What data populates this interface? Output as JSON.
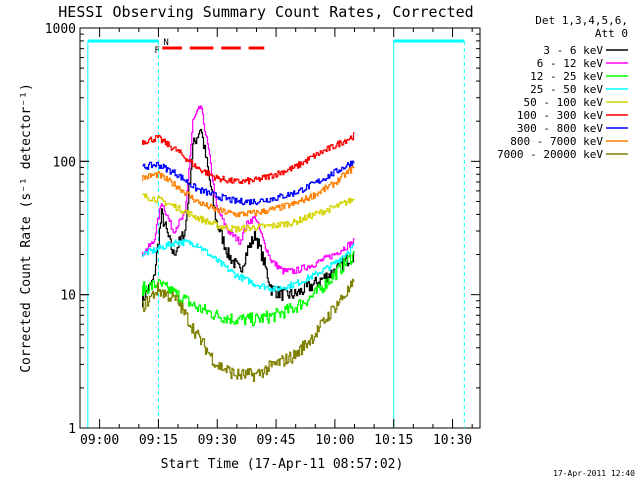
{
  "chart_data": {
    "type": "line",
    "title": "HESSI Observing Summary Count Rates, Corrected",
    "xlabel": "Start Time (17-Apr-11 08:57:02)",
    "ylabel": "Corrected Count Rate (s⁻¹ detector⁻¹)",
    "yscale": "log",
    "ylim": [
      1,
      1000
    ],
    "xlim": [
      "08:55",
      "10:37"
    ],
    "x_ticks": [
      "09:00",
      "09:15",
      "09:30",
      "09:45",
      "10:00",
      "10:15",
      "10:30"
    ],
    "y_ticks": [
      "1",
      "10",
      "100",
      "1000"
    ],
    "legend_header": [
      "Det 1,3,4,5,6,",
      "Att 0"
    ],
    "legend_position": "right",
    "timestamp": "17-Apr-2011 12:40",
    "flags": {
      "F_label": "F",
      "N_label": "N",
      "flare_segments": [
        [
          "09:16",
          "09:21"
        ],
        [
          "09:23",
          "09:29"
        ],
        [
          "09:31",
          "09:36"
        ],
        [
          "09:38",
          "09:42"
        ]
      ],
      "night_bars": [
        [
          "08:57",
          "09:15"
        ],
        [
          "10:15",
          "10:33"
        ]
      ],
      "sun_boundaries_solid": [
        "08:57",
        "10:15"
      ],
      "sun_boundaries_dashed": [
        "09:15",
        "10:33"
      ]
    },
    "data_window": [
      "09:11",
      "10:05"
    ],
    "series": [
      {
        "name": "3 - 6 keV",
        "color": "#000000",
        "x": [
          "09:11",
          "09:14",
          "09:16",
          "09:19",
          "09:22",
          "09:24",
          "09:26",
          "09:28",
          "09:30",
          "09:33",
          "09:36",
          "09:38",
          "09:40",
          "09:42",
          "09:44",
          "09:47",
          "09:50",
          "09:55",
          "10:00",
          "10:05"
        ],
        "values": [
          9,
          13,
          40,
          20,
          30,
          130,
          180,
          80,
          35,
          20,
          15,
          22,
          28,
          18,
          11,
          10,
          10,
          12,
          15,
          20
        ]
      },
      {
        "name": "6 - 12 keV",
        "color": "#ff00ff",
        "x": [
          "09:11",
          "09:14",
          "09:16",
          "09:19",
          "09:22",
          "09:24",
          "09:26",
          "09:28",
          "09:30",
          "09:33",
          "09:36",
          "09:38",
          "09:40",
          "09:42",
          "09:44",
          "09:47",
          "09:50",
          "09:55",
          "10:00",
          "10:05"
        ],
        "values": [
          20,
          25,
          50,
          30,
          40,
          200,
          260,
          120,
          45,
          30,
          25,
          35,
          38,
          25,
          18,
          15,
          15,
          17,
          20,
          25
        ]
      },
      {
        "name": "12 - 25 keV",
        "color": "#00ff00",
        "x": [
          "09:11",
          "09:15",
          "09:20",
          "09:25",
          "09:30",
          "09:35",
          "09:40",
          "09:45",
          "09:50",
          "09:55",
          "10:00",
          "10:05"
        ],
        "values": [
          11,
          12,
          10,
          8,
          7,
          6.5,
          6.5,
          7,
          8,
          10,
          14,
          20
        ]
      },
      {
        "name": "25 - 50 keV",
        "color": "#00ffff",
        "x": [
          "09:11",
          "09:15",
          "09:20",
          "09:25",
          "09:30",
          "09:35",
          "09:40",
          "09:45",
          "09:50",
          "09:55",
          "10:00",
          "10:05"
        ],
        "values": [
          20,
          22,
          25,
          24,
          18,
          14,
          12,
          11,
          12,
          14,
          17,
          23
        ]
      },
      {
        "name": "50 - 100 keV",
        "color": "#d4d400",
        "x": [
          "09:11",
          "09:15",
          "09:20",
          "09:25",
          "09:30",
          "09:35",
          "09:40",
          "09:45",
          "09:50",
          "09:55",
          "10:00",
          "10:05"
        ],
        "values": [
          55,
          52,
          45,
          38,
          33,
          31,
          32,
          33,
          35,
          40,
          45,
          52
        ]
      },
      {
        "name": "100 - 300 keV",
        "color": "#ff0000",
        "x": [
          "09:11",
          "09:15",
          "09:20",
          "09:25",
          "09:30",
          "09:35",
          "09:40",
          "09:45",
          "09:50",
          "09:55",
          "10:00",
          "10:05"
        ],
        "values": [
          140,
          150,
          120,
          90,
          75,
          70,
          72,
          80,
          90,
          110,
          130,
          155
        ]
      },
      {
        "name": "300 - 800 keV",
        "color": "#0000ff",
        "x": [
          "09:11",
          "09:15",
          "09:20",
          "09:25",
          "09:30",
          "09:35",
          "09:40",
          "09:45",
          "09:50",
          "09:55",
          "10:00",
          "10:05"
        ],
        "values": [
          90,
          95,
          80,
          62,
          55,
          50,
          50,
          53,
          58,
          68,
          82,
          100
        ]
      },
      {
        "name": "800 - 7000 keV",
        "color": "#ff8000",
        "x": [
          "09:11",
          "09:15",
          "09:20",
          "09:25",
          "09:30",
          "09:35",
          "09:40",
          "09:45",
          "09:50",
          "09:55",
          "10:00",
          "10:05"
        ],
        "values": [
          75,
          80,
          65,
          50,
          43,
          40,
          41,
          44,
          48,
          56,
          68,
          90
        ]
      },
      {
        "name": "7000 - 20000 keV",
        "color": "#808000",
        "x": [
          "09:11",
          "09:15",
          "09:20",
          "09:25",
          "09:30",
          "09:35",
          "09:40",
          "09:45",
          "09:50",
          "09:55",
          "10:00",
          "10:05"
        ],
        "values": [
          8,
          11,
          9,
          5,
          3,
          2.5,
          2.5,
          3,
          3.5,
          5,
          8,
          12
        ]
      }
    ]
  }
}
